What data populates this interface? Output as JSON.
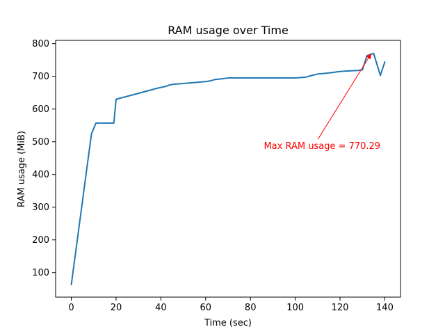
{
  "chart_data": {
    "type": "line",
    "title": "RAM usage over Time",
    "xlabel": "Time (sec)",
    "ylabel": "RAM usage (MiB)",
    "xlim": [
      -7,
      147
    ],
    "ylim": [
      25,
      810
    ],
    "x_ticks": [
      0,
      20,
      40,
      60,
      80,
      100,
      120,
      140
    ],
    "y_ticks": [
      100,
      200,
      300,
      400,
      500,
      600,
      700,
      800
    ],
    "grid": false,
    "series": [
      {
        "color": "#1f77b4",
        "x": [
          0,
          9,
          11,
          19,
          20,
          30,
          38,
          42,
          44,
          46,
          55,
          60,
          62,
          64,
          68,
          70,
          100,
          102,
          105,
          107,
          110,
          113,
          116,
          119,
          122,
          125,
          128,
          129,
          130,
          132,
          134,
          135,
          138,
          140
        ],
        "y": [
          63,
          524,
          557,
          557,
          630,
          648,
          663,
          669,
          674,
          676,
          681,
          684,
          686,
          690,
          693,
          695,
          695,
          696,
          698,
          702,
          707,
          709,
          711,
          714,
          716,
          717,
          718,
          719,
          720,
          763,
          768,
          770.29,
          703,
          744
        ]
      }
    ],
    "annotation": {
      "text": "Max RAM usage = 770.29",
      "color": "#ff0000",
      "point": [
        134,
        770.29
      ],
      "text_pos": [
        112,
        478
      ]
    }
  }
}
